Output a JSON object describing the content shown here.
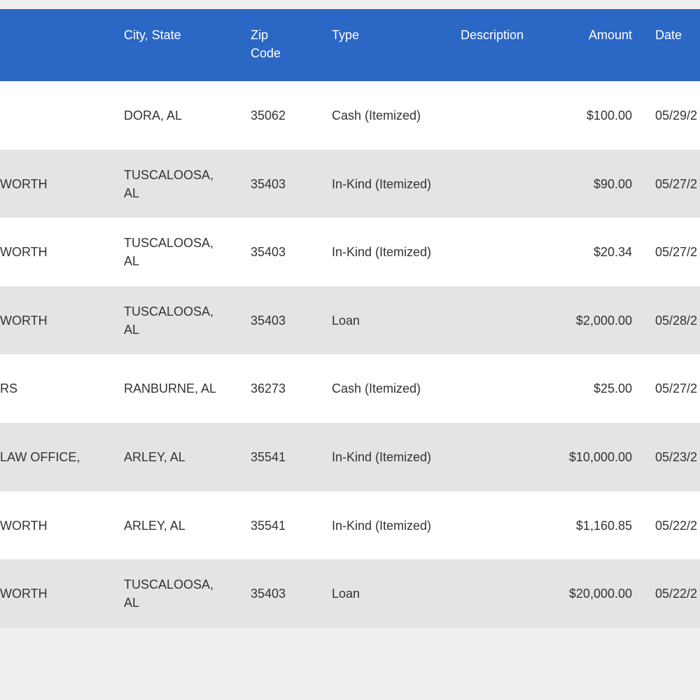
{
  "table": {
    "header": {
      "city": "City, State",
      "zip": "Zip Code",
      "type": "Type",
      "description": "Description",
      "amount": "Amount",
      "date": "Date"
    },
    "rows": [
      {
        "city": "DORA, AL",
        "zip": "35062",
        "type": "Cash (Itemized)",
        "amount": "$100.00",
        "date": "05/29/2"
      },
      {
        "name": "WORTH",
        "city": "TUSCALOOSA, AL",
        "zip": "35403",
        "type": "In-Kind (Itemized)",
        "amount": "$90.00",
        "date": "05/27/2"
      },
      {
        "name": "WORTH",
        "city": "TUSCALOOSA, AL",
        "zip": "35403",
        "type": "In-Kind (Itemized)",
        "amount": "$20.34",
        "date": "05/27/2"
      },
      {
        "name": "WORTH",
        "city": "TUSCALOOSA, AL",
        "zip": "35403",
        "type": "Loan",
        "amount": "$2,000.00",
        "date": "05/28/2"
      },
      {
        "name": "RS",
        "city": "RANBURNE, AL",
        "zip": "36273",
        "type": "Cash (Itemized)",
        "amount": "$25.00",
        "date": "05/27/2"
      },
      {
        "name": "LAW OFFICE,",
        "city": "ARLEY, AL",
        "zip": "35541",
        "type": "In-Kind (Itemized)",
        "amount": "$10,000.00",
        "date": "05/23/2"
      },
      {
        "name": "WORTH",
        "city": "ARLEY, AL",
        "zip": "35541",
        "type": "In-Kind (Itemized)",
        "amount": "$1,160.85",
        "date": "05/22/2"
      },
      {
        "name": "WORTH",
        "city": "TUSCALOOSA, AL",
        "zip": "35403",
        "type": "Loan",
        "amount": "$20,000.00",
        "date": "05/22/2"
      }
    ]
  }
}
